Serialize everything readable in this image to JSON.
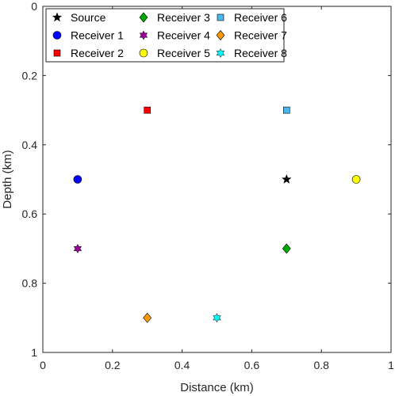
{
  "chart_data": {
    "type": "scatter",
    "xlabel": "Distance (km)",
    "ylabel": "Depth (km)",
    "xlim": [
      0,
      1
    ],
    "ylim": [
      0,
      1
    ],
    "y_reversed": true,
    "grid": false,
    "legend_position": "top-left",
    "legend_columns": 3,
    "xticks": [
      0,
      0.2,
      0.4,
      0.6,
      0.8,
      1
    ],
    "xtick_labels": [
      "0",
      "0.2",
      "0.4",
      "0.6",
      "0.8",
      "1"
    ],
    "yticks": [
      0,
      0.2,
      0.4,
      0.6,
      0.8,
      1
    ],
    "ytick_labels": [
      "0",
      "0.2",
      "0.4",
      "0.6",
      "0.8",
      "1"
    ],
    "series": [
      {
        "name": "Source",
        "marker": "star",
        "color": "#000000",
        "x": 0.7,
        "y": 0.5
      },
      {
        "name": "Receiver 1",
        "marker": "circle",
        "color": "#0000ff",
        "x": 0.1,
        "y": 0.5
      },
      {
        "name": "Receiver 2",
        "marker": "square",
        "color": "#ff0000",
        "x": 0.3,
        "y": 0.3
      },
      {
        "name": "Receiver 3",
        "marker": "diamond",
        "color": "#00aa00",
        "x": 0.7,
        "y": 0.7
      },
      {
        "name": "Receiver 4",
        "marker": "hexagram",
        "color": "#990099",
        "x": 0.1,
        "y": 0.7
      },
      {
        "name": "Receiver 5",
        "marker": "circle",
        "color": "#ffff00",
        "x": 0.9,
        "y": 0.5
      },
      {
        "name": "Receiver 6",
        "marker": "square",
        "color": "#4db8ee",
        "x": 0.7,
        "y": 0.3
      },
      {
        "name": "Receiver 7",
        "marker": "diamond",
        "color": "#ff9900",
        "x": 0.3,
        "y": 0.9
      },
      {
        "name": "Receiver 8",
        "marker": "hexagram",
        "color": "#00ffff",
        "x": 0.5,
        "y": 0.9
      }
    ]
  }
}
